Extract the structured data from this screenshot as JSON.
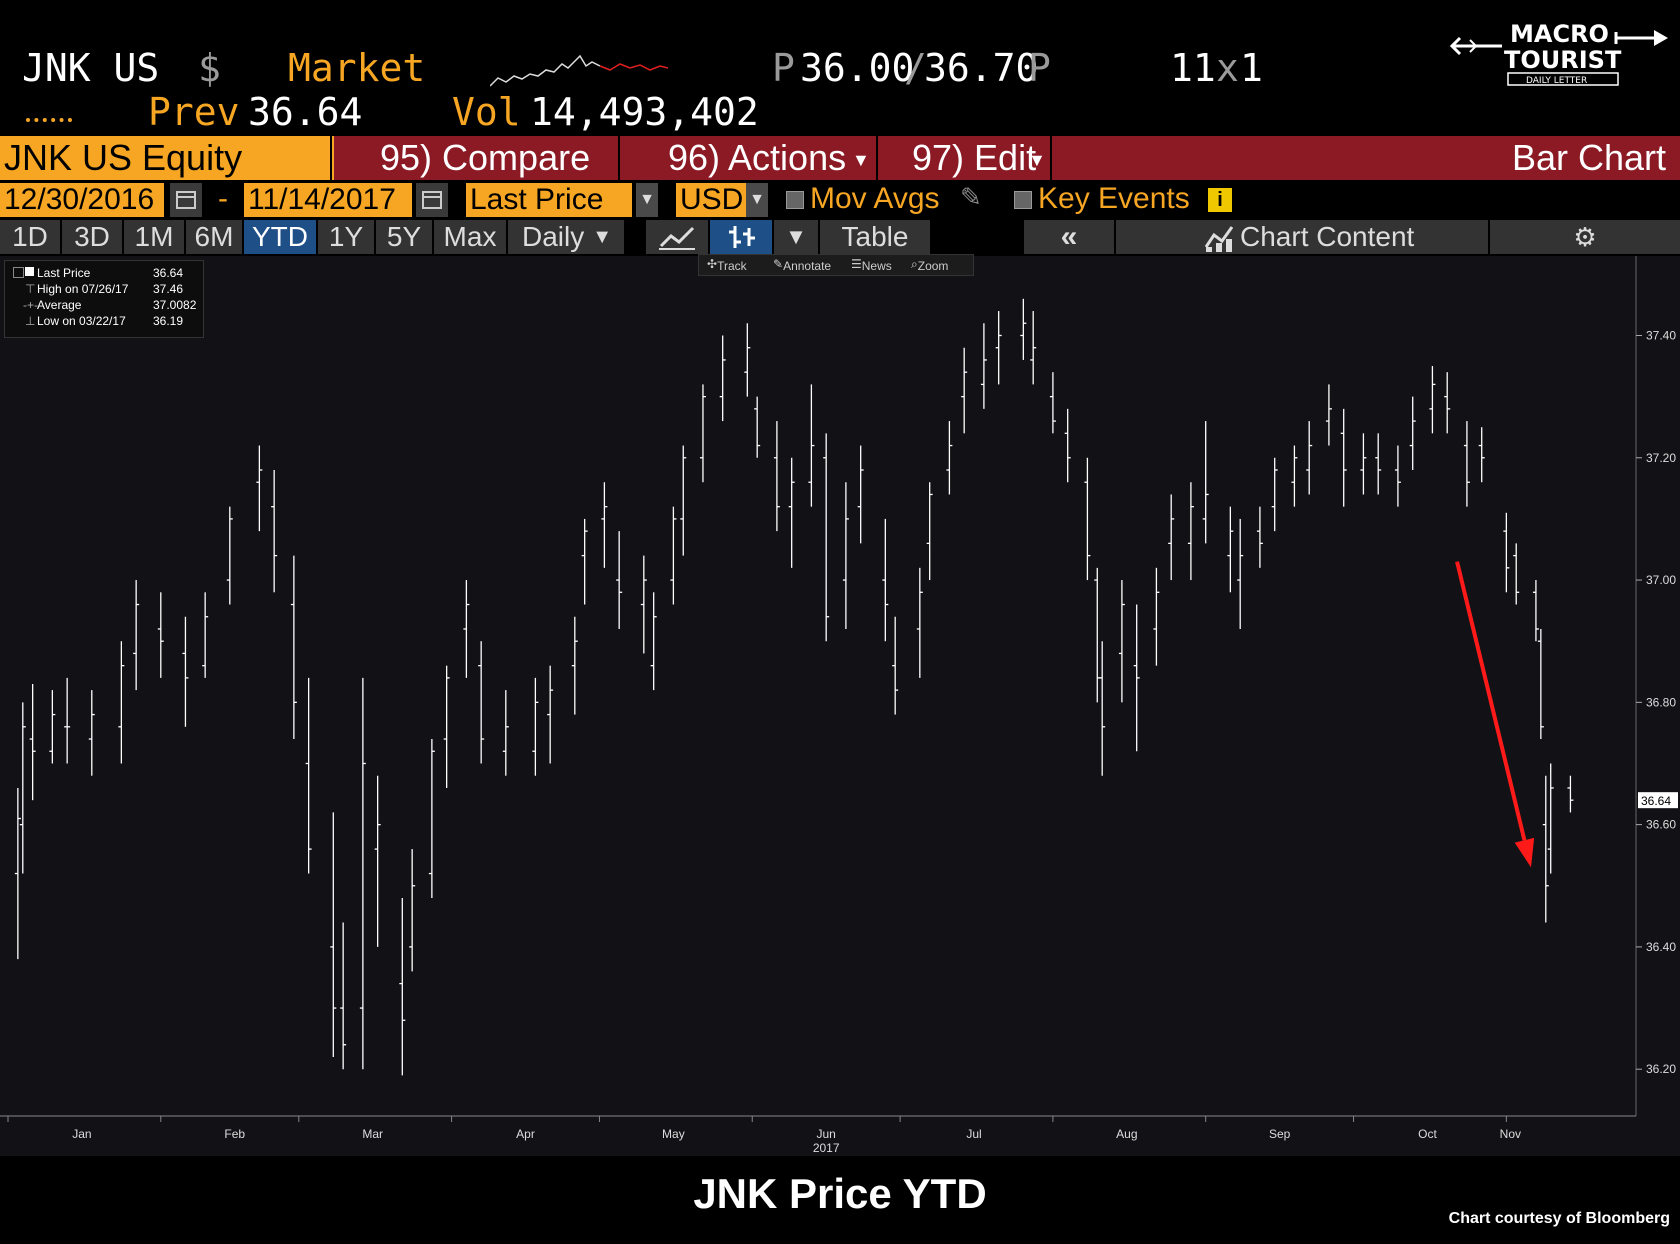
{
  "header": {
    "ticker": "JNK US",
    "currency_symbol": "$",
    "market_label": "Market",
    "bid_ask_prefix": "P",
    "bid": "36.00",
    "ask": "36.70",
    "bid_ask_suffix": "P",
    "size": "11",
    "size_x": "x",
    "size2": "1",
    "prev_label": "Prev",
    "prev_value": "36.64",
    "vol_label": "Vol",
    "vol_value": "14,493,402"
  },
  "logo": {
    "line1": "MACRO",
    "line2": "TOURIST",
    "line3": "DAILY LETTER"
  },
  "function_row": {
    "security": "JNK US Equity",
    "compare": "95) Compare",
    "actions": "96) Actions",
    "edit": "97) Edit",
    "title": "Bar Chart"
  },
  "settings": {
    "start_date": "12/30/2016",
    "dash": "-",
    "end_date": "11/14/2017",
    "field": "Last Price",
    "currency": "USD",
    "mov_avgs": "Mov Avgs",
    "key_events": "Key Events"
  },
  "tabs": [
    "1D",
    "3D",
    "1M",
    "6M",
    "YTD",
    "1Y",
    "5Y",
    "Max"
  ],
  "active_tab": "YTD",
  "period": "Daily",
  "table_label": "Table",
  "chart_content_label": "Chart Content",
  "tools": [
    "Track",
    "Annotate",
    "News",
    "Zoom"
  ],
  "legend": [
    {
      "label": "Last Price",
      "value": "36.64"
    },
    {
      "label": "High on 07/26/17",
      "value": "37.46"
    },
    {
      "label": "Average",
      "value": "37.0082"
    },
    {
      "label": "Low on 03/22/17",
      "value": "36.19"
    }
  ],
  "colors": {
    "orange": "#f6a623",
    "function_bar": "#8b1a24",
    "active_tab": "#1e4f86",
    "arrow": "#ff1a1a",
    "bars": "#ffffff"
  },
  "chart_data": {
    "type": "bar",
    "style": "OHLC daily bars",
    "series": [
      {
        "name": "Last Price",
        "points": [
          {
            "d": "2017-01-03",
            "o": 36.52,
            "h": 36.66,
            "l": 36.38,
            "c": 36.61
          },
          {
            "d": "2017-01-04",
            "o": 36.6,
            "h": 36.8,
            "l": 36.52,
            "c": 36.76
          },
          {
            "d": "2017-01-06",
            "o": 36.74,
            "h": 36.83,
            "l": 36.64,
            "c": 36.72
          },
          {
            "d": "2017-01-10",
            "o": 36.72,
            "h": 36.82,
            "l": 36.7,
            "c": 36.78
          },
          {
            "d": "2017-01-13",
            "o": 36.76,
            "h": 36.84,
            "l": 36.7,
            "c": 36.76
          },
          {
            "d": "2017-01-18",
            "o": 36.74,
            "h": 36.82,
            "l": 36.68,
            "c": 36.78
          },
          {
            "d": "2017-01-24",
            "o": 36.76,
            "h": 36.9,
            "l": 36.7,
            "c": 36.86
          },
          {
            "d": "2017-01-27",
            "o": 36.88,
            "h": 37.0,
            "l": 36.82,
            "c": 36.96
          },
          {
            "d": "2017-02-01",
            "o": 36.92,
            "h": 36.98,
            "l": 36.84,
            "c": 36.9
          },
          {
            "d": "2017-02-06",
            "o": 36.88,
            "h": 36.94,
            "l": 36.76,
            "c": 36.84
          },
          {
            "d": "2017-02-10",
            "o": 36.86,
            "h": 36.98,
            "l": 36.84,
            "c": 36.94
          },
          {
            "d": "2017-02-15",
            "o": 37.0,
            "h": 37.12,
            "l": 36.96,
            "c": 37.1
          },
          {
            "d": "2017-02-21",
            "o": 37.16,
            "h": 37.22,
            "l": 37.08,
            "c": 37.18
          },
          {
            "d": "2017-02-24",
            "o": 37.12,
            "h": 37.18,
            "l": 36.98,
            "c": 37.04
          },
          {
            "d": "2017-02-28",
            "o": 36.96,
            "h": 37.04,
            "l": 36.74,
            "c": 36.8
          },
          {
            "d": "2017-03-03",
            "o": 36.7,
            "h": 36.84,
            "l": 36.52,
            "c": 36.56
          },
          {
            "d": "2017-03-08",
            "o": 36.4,
            "h": 36.62,
            "l": 36.22,
            "c": 36.3
          },
          {
            "d": "2017-03-10",
            "o": 36.3,
            "h": 36.44,
            "l": 36.2,
            "c": 36.24
          },
          {
            "d": "2017-03-14",
            "o": 36.3,
            "h": 36.84,
            "l": 36.2,
            "c": 36.7
          },
          {
            "d": "2017-03-17",
            "o": 36.56,
            "h": 36.68,
            "l": 36.4,
            "c": 36.6
          },
          {
            "d": "2017-03-22",
            "o": 36.34,
            "h": 36.48,
            "l": 36.19,
            "c": 36.28
          },
          {
            "d": "2017-03-24",
            "o": 36.4,
            "h": 36.56,
            "l": 36.36,
            "c": 36.5
          },
          {
            "d": "2017-03-28",
            "o": 36.52,
            "h": 36.74,
            "l": 36.48,
            "c": 36.72
          },
          {
            "d": "2017-03-31",
            "o": 36.74,
            "h": 36.86,
            "l": 36.66,
            "c": 36.84
          },
          {
            "d": "2017-04-04",
            "o": 36.92,
            "h": 37.0,
            "l": 36.84,
            "c": 36.96
          },
          {
            "d": "2017-04-07",
            "o": 36.86,
            "h": 36.9,
            "l": 36.7,
            "c": 36.74
          },
          {
            "d": "2017-04-12",
            "o": 36.72,
            "h": 36.82,
            "l": 36.68,
            "c": 36.76
          },
          {
            "d": "2017-04-18",
            "o": 36.72,
            "h": 36.84,
            "l": 36.68,
            "c": 36.8
          },
          {
            "d": "2017-04-21",
            "o": 36.78,
            "h": 36.86,
            "l": 36.7,
            "c": 36.82
          },
          {
            "d": "2017-04-26",
            "o": 36.86,
            "h": 36.94,
            "l": 36.78,
            "c": 36.9
          },
          {
            "d": "2017-04-28",
            "o": 37.04,
            "h": 37.1,
            "l": 36.96,
            "c": 37.08
          },
          {
            "d": "2017-05-02",
            "o": 37.1,
            "h": 37.16,
            "l": 37.02,
            "c": 37.12
          },
          {
            "d": "2017-05-05",
            "o": 37.0,
            "h": 37.08,
            "l": 36.92,
            "c": 36.98
          },
          {
            "d": "2017-05-10",
            "o": 36.96,
            "h": 37.04,
            "l": 36.88,
            "c": 37.0
          },
          {
            "d": "2017-05-12",
            "o": 36.86,
            "h": 36.98,
            "l": 36.82,
            "c": 36.94
          },
          {
            "d": "2017-05-16",
            "o": 37.0,
            "h": 37.12,
            "l": 36.96,
            "c": 37.1
          },
          {
            "d": "2017-05-18",
            "o": 37.1,
            "h": 37.22,
            "l": 37.04,
            "c": 37.2
          },
          {
            "d": "2017-05-22",
            "o": 37.2,
            "h": 37.32,
            "l": 37.16,
            "c": 37.3
          },
          {
            "d": "2017-05-26",
            "o": 37.3,
            "h": 37.4,
            "l": 37.26,
            "c": 37.36
          },
          {
            "d": "2017-05-31",
            "o": 37.34,
            "h": 37.42,
            "l": 37.3,
            "c": 37.38
          },
          {
            "d": "2017-06-02",
            "o": 37.28,
            "h": 37.3,
            "l": 37.2,
            "c": 37.22
          },
          {
            "d": "2017-06-06",
            "o": 37.2,
            "h": 37.26,
            "l": 37.08,
            "c": 37.12
          },
          {
            "d": "2017-06-09",
            "o": 37.12,
            "h": 37.2,
            "l": 37.02,
            "c": 37.16
          },
          {
            "d": "2017-06-13",
            "o": 37.16,
            "h": 37.32,
            "l": 37.12,
            "c": 37.22
          },
          {
            "d": "2017-06-16",
            "o": 37.2,
            "h": 37.24,
            "l": 36.9,
            "c": 36.94
          },
          {
            "d": "2017-06-20",
            "o": 37.0,
            "h": 37.16,
            "l": 36.92,
            "c": 37.1
          },
          {
            "d": "2017-06-23",
            "o": 37.12,
            "h": 37.22,
            "l": 37.06,
            "c": 37.18
          },
          {
            "d": "2017-06-28",
            "o": 37.0,
            "h": 37.1,
            "l": 36.9,
            "c": 36.96
          },
          {
            "d": "2017-06-30",
            "o": 36.86,
            "h": 36.94,
            "l": 36.78,
            "c": 36.82
          },
          {
            "d": "2017-07-05",
            "o": 36.92,
            "h": 37.02,
            "l": 36.84,
            "c": 36.98
          },
          {
            "d": "2017-07-07",
            "o": 37.06,
            "h": 37.16,
            "l": 37.0,
            "c": 37.14
          },
          {
            "d": "2017-07-11",
            "o": 37.18,
            "h": 37.26,
            "l": 37.14,
            "c": 37.22
          },
          {
            "d": "2017-07-14",
            "o": 37.3,
            "h": 37.38,
            "l": 37.24,
            "c": 37.34
          },
          {
            "d": "2017-07-18",
            "o": 37.32,
            "h": 37.42,
            "l": 37.28,
            "c": 37.36
          },
          {
            "d": "2017-07-21",
            "o": 37.38,
            "h": 37.44,
            "l": 37.32,
            "c": 37.4
          },
          {
            "d": "2017-07-26",
            "o": 37.4,
            "h": 37.46,
            "l": 37.36,
            "c": 37.42
          },
          {
            "d": "2017-07-28",
            "o": 37.36,
            "h": 37.44,
            "l": 37.32,
            "c": 37.38
          },
          {
            "d": "2017-08-01",
            "o": 37.3,
            "h": 37.34,
            "l": 37.24,
            "c": 37.26
          },
          {
            "d": "2017-08-04",
            "o": 37.24,
            "h": 37.28,
            "l": 37.16,
            "c": 37.2
          },
          {
            "d": "2017-08-08",
            "o": 37.16,
            "h": 37.2,
            "l": 37.0,
            "c": 37.04
          },
          {
            "d": "2017-08-10",
            "o": 37.0,
            "h": 37.02,
            "l": 36.8,
            "c": 36.84
          },
          {
            "d": "2017-08-11",
            "o": 36.84,
            "h": 36.9,
            "l": 36.68,
            "c": 36.76
          },
          {
            "d": "2017-08-15",
            "o": 36.88,
            "h": 37.0,
            "l": 36.8,
            "c": 36.96
          },
          {
            "d": "2017-08-18",
            "o": 36.86,
            "h": 36.96,
            "l": 36.72,
            "c": 36.84
          },
          {
            "d": "2017-08-22",
            "o": 36.92,
            "h": 37.02,
            "l": 36.86,
            "c": 36.98
          },
          {
            "d": "2017-08-25",
            "o": 37.06,
            "h": 37.14,
            "l": 37.0,
            "c": 37.1
          },
          {
            "d": "2017-08-29",
            "o": 37.06,
            "h": 37.16,
            "l": 37.0,
            "c": 37.12
          },
          {
            "d": "2017-09-01",
            "o": 37.1,
            "h": 37.26,
            "l": 37.06,
            "c": 37.14
          },
          {
            "d": "2017-09-06",
            "o": 37.04,
            "h": 37.12,
            "l": 36.98,
            "c": 37.08
          },
          {
            "d": "2017-09-08",
            "o": 37.0,
            "h": 37.1,
            "l": 36.92,
            "c": 37.04
          },
          {
            "d": "2017-09-12",
            "o": 37.08,
            "h": 37.12,
            "l": 37.02,
            "c": 37.06
          },
          {
            "d": "2017-09-15",
            "o": 37.12,
            "h": 37.2,
            "l": 37.08,
            "c": 37.18
          },
          {
            "d": "2017-09-19",
            "o": 37.16,
            "h": 37.22,
            "l": 37.12,
            "c": 37.2
          },
          {
            "d": "2017-09-22",
            "o": 37.18,
            "h": 37.26,
            "l": 37.14,
            "c": 37.22
          },
          {
            "d": "2017-09-26",
            "o": 37.26,
            "h": 37.32,
            "l": 37.22,
            "c": 37.28
          },
          {
            "d": "2017-09-29",
            "o": 37.24,
            "h": 37.28,
            "l": 37.12,
            "c": 37.18
          },
          {
            "d": "2017-10-03",
            "o": 37.18,
            "h": 37.24,
            "l": 37.14,
            "c": 37.2
          },
          {
            "d": "2017-10-06",
            "o": 37.2,
            "h": 37.24,
            "l": 37.14,
            "c": 37.18
          },
          {
            "d": "2017-10-10",
            "o": 37.18,
            "h": 37.22,
            "l": 37.12,
            "c": 37.16
          },
          {
            "d": "2017-10-13",
            "o": 37.22,
            "h": 37.3,
            "l": 37.18,
            "c": 37.26
          },
          {
            "d": "2017-10-17",
            "o": 37.28,
            "h": 37.35,
            "l": 37.24,
            "c": 37.32
          },
          {
            "d": "2017-10-20",
            "o": 37.3,
            "h": 37.34,
            "l": 37.24,
            "c": 37.28
          },
          {
            "d": "2017-10-24",
            "o": 37.22,
            "h": 37.26,
            "l": 37.12,
            "c": 37.16
          },
          {
            "d": "2017-10-27",
            "o": 37.22,
            "h": 37.25,
            "l": 37.16,
            "c": 37.2
          },
          {
            "d": "2017-11-01",
            "o": 37.08,
            "h": 37.11,
            "l": 36.98,
            "c": 37.02
          },
          {
            "d": "2017-11-03",
            "o": 37.04,
            "h": 37.06,
            "l": 36.96,
            "c": 36.98
          },
          {
            "d": "2017-11-07",
            "o": 36.98,
            "h": 37.0,
            "l": 36.9,
            "c": 36.92
          },
          {
            "d": "2017-11-08",
            "o": 36.9,
            "h": 36.92,
            "l": 36.74,
            "c": 36.76
          },
          {
            "d": "2017-11-09",
            "o": 36.6,
            "h": 36.68,
            "l": 36.44,
            "c": 36.5
          },
          {
            "d": "2017-11-10",
            "o": 36.56,
            "h": 36.7,
            "l": 36.52,
            "c": 36.66
          },
          {
            "d": "2017-11-14",
            "o": 36.66,
            "h": 36.68,
            "l": 36.62,
            "c": 36.64
          }
        ]
      }
    ],
    "y_ticks": [
      "36.20",
      "36.40",
      "36.60",
      "36.80",
      "37.00",
      "37.20",
      "37.40"
    ],
    "ylim": [
      36.13,
      37.53
    ],
    "x_months": [
      "Jan",
      "Feb",
      "Mar",
      "Apr",
      "May",
      "Jun",
      "Jul",
      "Aug",
      "Sep",
      "Oct",
      "Nov"
    ],
    "x_year": "2017",
    "last_price_tag": "36.64",
    "title": "JNK Price YTD",
    "credit": "Chart courtesy of Bloomberg",
    "annotation": {
      "type": "arrow",
      "color": "red",
      "from": {
        "d": "2017-10-22",
        "y": 37.03
      },
      "to": {
        "d": "2017-11-06",
        "y": 36.53
      }
    },
    "grid": false,
    "legend_position": "top-left"
  }
}
